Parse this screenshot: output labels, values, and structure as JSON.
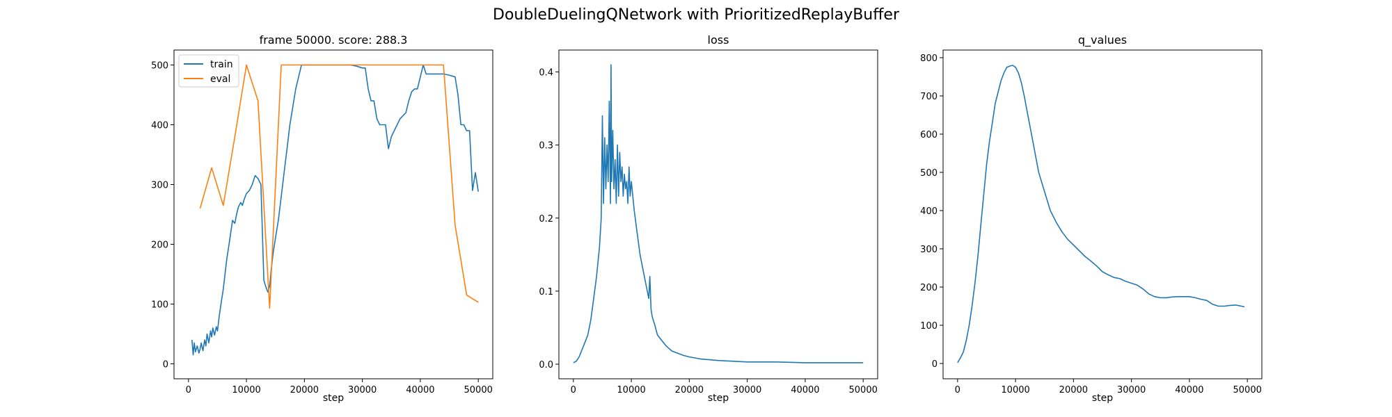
{
  "figure": {
    "title": "DoubleDuelingQNetwork with PrioritizedReplayBuffer"
  },
  "chart_data": [
    {
      "type": "line",
      "title": "frame 50000. score: 288.3",
      "xlabel": "step",
      "ylabel": "",
      "xlim": [
        -2500,
        52500
      ],
      "ylim": [
        -25,
        525
      ],
      "xticks": [
        0,
        10000,
        20000,
        30000,
        40000,
        50000
      ],
      "yticks": [
        0,
        100,
        200,
        300,
        400,
        500
      ],
      "legend": "top-left",
      "series": [
        {
          "name": "train",
          "color": "#1f77b4",
          "x": [
            600,
            800,
            1000,
            1200,
            1500,
            1800,
            2000,
            2200,
            2500,
            2800,
            3000,
            3200,
            3500,
            3800,
            4000,
            4200,
            4500,
            4800,
            5000,
            5300,
            5600,
            6000,
            6300,
            6600,
            7000,
            7300,
            7600,
            8000,
            8300,
            8600,
            9000,
            9300,
            9600,
            10000,
            10500,
            11000,
            11500,
            12000,
            12500,
            13000,
            13300,
            13700,
            14000,
            14300,
            14600,
            15000,
            15500,
            16000,
            16500,
            17000,
            17500,
            18000,
            18500,
            19000,
            19500,
            20000,
            20500,
            21000,
            22000,
            23000,
            24000,
            25000,
            26000,
            27000,
            28000,
            29000,
            30000,
            30500,
            31000,
            31500,
            32000,
            32500,
            33000,
            33500,
            34000,
            34500,
            35000,
            35500,
            36000,
            36500,
            37000,
            37500,
            38000,
            38500,
            39000,
            39500,
            40000,
            40500,
            41000,
            42000,
            43000,
            44000,
            45000,
            46000,
            46500,
            47000,
            47500,
            48000,
            48500,
            49000,
            49500,
            50000
          ],
          "values": [
            40,
            15,
            35,
            20,
            30,
            18,
            25,
            35,
            22,
            40,
            30,
            50,
            35,
            55,
            45,
            60,
            48,
            62,
            55,
            80,
            100,
            125,
            150,
            175,
            200,
            220,
            240,
            235,
            250,
            262,
            270,
            265,
            275,
            285,
            290,
            300,
            315,
            310,
            300,
            140,
            130,
            120,
            130,
            160,
            185,
            210,
            240,
            280,
            320,
            360,
            400,
            430,
            460,
            480,
            500,
            500,
            500,
            500,
            500,
            500,
            500,
            500,
            500,
            500,
            500,
            498,
            495,
            495,
            460,
            440,
            440,
            410,
            400,
            400,
            400,
            360,
            380,
            390,
            400,
            410,
            415,
            420,
            440,
            455,
            460,
            460,
            480,
            500,
            485,
            485,
            485,
            485,
            483,
            480,
            450,
            400,
            400,
            390,
            390,
            290,
            320,
            288
          ]
        },
        {
          "name": "eval",
          "color": "#ff7f0e",
          "x": [
            2000,
            4000,
            6000,
            8000,
            10000,
            12000,
            14000,
            16000,
            18000,
            20000,
            22000,
            24000,
            26000,
            28000,
            30000,
            32000,
            34000,
            36000,
            38000,
            40000,
            42000,
            44000,
            46000,
            48000,
            50000
          ],
          "values": [
            260,
            328,
            265,
            380,
            500,
            440,
            93,
            500,
            500,
            500,
            500,
            500,
            500,
            500,
            500,
            500,
            500,
            500,
            500,
            500,
            500,
            500,
            232,
            115,
            103
          ]
        }
      ]
    },
    {
      "type": "line",
      "title": "loss",
      "xlabel": "step",
      "ylabel": "",
      "xlim": [
        -2500,
        52500
      ],
      "ylim": [
        -0.02,
        0.43
      ],
      "xticks": [
        0,
        10000,
        20000,
        30000,
        40000,
        50000
      ],
      "yticks": [
        0.0,
        0.1,
        0.2,
        0.3,
        0.4
      ],
      "ytick_labels": [
        "0.0",
        "0.1",
        "0.2",
        "0.3",
        "0.4"
      ],
      "series": [
        {
          "name": "",
          "color": "#1f77b4",
          "x": [
            0,
            500,
            1000,
            1500,
            2000,
            2500,
            3000,
            3500,
            4000,
            4500,
            4800,
            5000,
            5200,
            5400,
            5600,
            5800,
            6000,
            6200,
            6400,
            6500,
            6600,
            6800,
            7000,
            7200,
            7400,
            7600,
            7800,
            8000,
            8200,
            8400,
            8600,
            8800,
            9000,
            9200,
            9400,
            9600,
            9800,
            10000,
            10500,
            11000,
            11500,
            12000,
            12500,
            13000,
            13200,
            13400,
            13600,
            14000,
            14500,
            15000,
            16000,
            17000,
            18000,
            19000,
            20000,
            22000,
            25000,
            30000,
            35000,
            40000,
            45000,
            50000
          ],
          "values": [
            0.002,
            0.004,
            0.01,
            0.02,
            0.03,
            0.04,
            0.06,
            0.09,
            0.12,
            0.16,
            0.2,
            0.34,
            0.22,
            0.31,
            0.24,
            0.3,
            0.25,
            0.36,
            0.22,
            0.41,
            0.25,
            0.32,
            0.24,
            0.28,
            0.22,
            0.3,
            0.23,
            0.29,
            0.25,
            0.27,
            0.23,
            0.26,
            0.24,
            0.25,
            0.22,
            0.27,
            0.23,
            0.25,
            0.21,
            0.18,
            0.15,
            0.13,
            0.11,
            0.09,
            0.12,
            0.075,
            0.065,
            0.055,
            0.04,
            0.035,
            0.025,
            0.018,
            0.015,
            0.012,
            0.01,
            0.007,
            0.005,
            0.003,
            0.003,
            0.002,
            0.002,
            0.002
          ]
        }
      ]
    },
    {
      "type": "line",
      "title": "q_values",
      "xlabel": "step",
      "ylabel": "",
      "xlim": [
        -2500,
        52500
      ],
      "ylim": [
        -40,
        820
      ],
      "xticks": [
        0,
        10000,
        20000,
        30000,
        40000,
        50000
      ],
      "yticks": [
        0,
        100,
        200,
        300,
        400,
        500,
        600,
        700,
        800
      ],
      "series": [
        {
          "name": "",
          "color": "#1f77b4",
          "x": [
            0,
            500,
            1000,
            1500,
            2000,
            2500,
            3000,
            3500,
            4000,
            4500,
            5000,
            5500,
            6000,
            6500,
            7000,
            7500,
            8000,
            8500,
            9000,
            9500,
            10000,
            10500,
            11000,
            11500,
            12000,
            12500,
            13000,
            13500,
            14000,
            15000,
            16000,
            17000,
            18000,
            19000,
            20000,
            21000,
            22000,
            23000,
            24000,
            25000,
            26000,
            27000,
            28000,
            29000,
            30000,
            31000,
            32000,
            33000,
            34000,
            35000,
            36000,
            37000,
            38000,
            39000,
            40000,
            41000,
            42000,
            43000,
            44000,
            45000,
            46000,
            47000,
            48000,
            49000,
            49500
          ],
          "values": [
            2,
            15,
            30,
            60,
            100,
            150,
            210,
            280,
            360,
            440,
            520,
            580,
            630,
            680,
            710,
            740,
            760,
            775,
            778,
            780,
            775,
            760,
            735,
            700,
            660,
            620,
            580,
            540,
            500,
            450,
            400,
            370,
            345,
            325,
            310,
            295,
            280,
            268,
            255,
            240,
            232,
            225,
            222,
            215,
            210,
            205,
            195,
            182,
            175,
            172,
            172,
            174,
            175,
            175,
            175,
            172,
            168,
            165,
            155,
            150,
            150,
            152,
            153,
            150,
            148
          ]
        }
      ]
    }
  ]
}
